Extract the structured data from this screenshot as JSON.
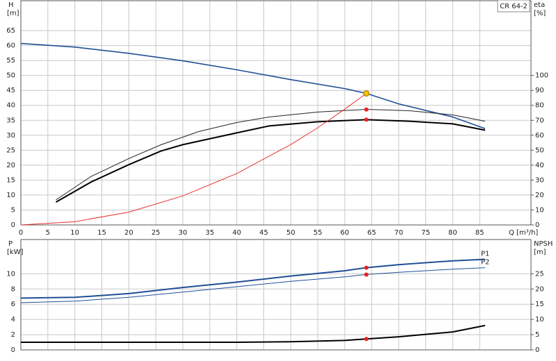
{
  "chart_data": [
    {
      "type": "line",
      "title": "CR 64-2",
      "xlabel": "Q [m³/h]",
      "ylabel": "H",
      "yunit": "[m]",
      "y2label": "eta",
      "y2unit": "[%]",
      "xlim": [
        0,
        94.5
      ],
      "xticks": [
        0,
        5,
        10,
        15,
        20,
        25,
        30,
        35,
        40,
        45,
        50,
        55,
        60,
        65,
        70,
        75,
        80,
        85
      ],
      "ylim": [
        0,
        75
      ],
      "yticks": [
        0,
        5,
        10,
        15,
        20,
        25,
        30,
        35,
        40,
        45,
        50,
        55,
        60,
        65
      ],
      "y2lim": [
        0,
        150
      ],
      "y2ticks": [
        0,
        10,
        20,
        30,
        40,
        50,
        60,
        70,
        80,
        90,
        100
      ],
      "grid": true,
      "series": [
        {
          "color": "#1f4e96",
          "width": 1.6,
          "x": [
            0,
            10,
            20,
            30,
            40,
            50,
            60,
            64,
            70,
            80,
            86
          ],
          "values": [
            60.7,
            59.5,
            57.4,
            54.9,
            51.9,
            48.6,
            45.6,
            44,
            40.5,
            36.1,
            32.2
          ]
        },
        {
          "color": "#222222",
          "width": 1,
          "axis": "y2",
          "x": [
            6.5,
            13,
            20,
            26,
            33,
            40,
            46,
            55,
            64,
            72,
            80,
            86
          ],
          "values": [
            16.7,
            32.4,
            44.4,
            53.7,
            62.5,
            68.5,
            72.2,
            75.5,
            77.3,
            76.4,
            73.6,
            69.4
          ]
        },
        {
          "color": "#000000",
          "width": 2,
          "axis": "y2",
          "x": [
            6.5,
            13,
            20,
            26,
            30,
            40,
            46,
            55,
            64,
            72,
            80,
            86
          ],
          "values": [
            15.3,
            28.7,
            40.3,
            49.5,
            53.7,
            61.6,
            66.2,
            69,
            70.4,
            69.4,
            67.6,
            63.4
          ]
        },
        {
          "color": "#e83030",
          "width": 1,
          "x": [
            0,
            10,
            20,
            30,
            40,
            50,
            55,
            60,
            64
          ],
          "values": [
            0,
            1.07,
            4.3,
            9.7,
            17.2,
            26.9,
            32.5,
            38.7,
            44
          ]
        }
      ],
      "points": [
        {
          "x": 64,
          "y": 77.2,
          "axis": "y2",
          "color": "#e82020"
        },
        {
          "x": 64,
          "y": 70.4,
          "axis": "y2",
          "color": "#e82020"
        },
        {
          "x": 64,
          "y": 44,
          "color": "#f5c400"
        }
      ]
    },
    {
      "type": "line",
      "ylabel": "P",
      "yunit": "[kW]",
      "y2label": "NPSH",
      "y2unit": "[m]",
      "xlim": [
        0,
        94.5
      ],
      "xticks": [
        0,
        5,
        10,
        15,
        20,
        25,
        30,
        35,
        40,
        45,
        50,
        55,
        60,
        65,
        70,
        75,
        80,
        85
      ],
      "ylim": [
        0,
        14.5
      ],
      "yticks": [
        0,
        2,
        4,
        6,
        8,
        10
      ],
      "y2lim": [
        0,
        36.25
      ],
      "y2ticks": [
        0,
        5,
        10,
        15,
        20,
        25
      ],
      "grid": true,
      "series": [
        {
          "name": "P1",
          "color": "#1f4e96",
          "width": 2,
          "x": [
            0,
            10,
            20,
            30,
            40,
            50,
            60,
            64,
            70,
            80,
            86
          ],
          "values": [
            6.8,
            6.9,
            7.4,
            8.2,
            8.9,
            9.7,
            10.4,
            10.8,
            11.2,
            11.7,
            11.9
          ]
        },
        {
          "name": "P2",
          "color": "#1f4e96",
          "width": 1,
          "x": [
            0,
            10,
            20,
            30,
            40,
            50,
            60,
            64,
            70,
            80,
            86
          ],
          "values": [
            6.2,
            6.4,
            6.9,
            7.6,
            8.3,
            9.0,
            9.6,
            9.9,
            10.2,
            10.6,
            10.8
          ]
        },
        {
          "color": "#000000",
          "width": 2,
          "axis": "y2",
          "x": [
            0,
            30,
            40,
            50,
            60,
            64,
            70,
            80,
            86
          ],
          "values": [
            2.5,
            2.5,
            2.5,
            2.7,
            3.1,
            3.6,
            4.3,
            5.9,
            8.0
          ]
        }
      ],
      "points": [
        {
          "x": 64,
          "y": 10.8,
          "color": "#e82020"
        },
        {
          "x": 64,
          "y": 9.9,
          "color": "#e82020"
        },
        {
          "x": 64,
          "y": 3.6,
          "axis": "y2",
          "color": "#e82020"
        }
      ]
    }
  ]
}
